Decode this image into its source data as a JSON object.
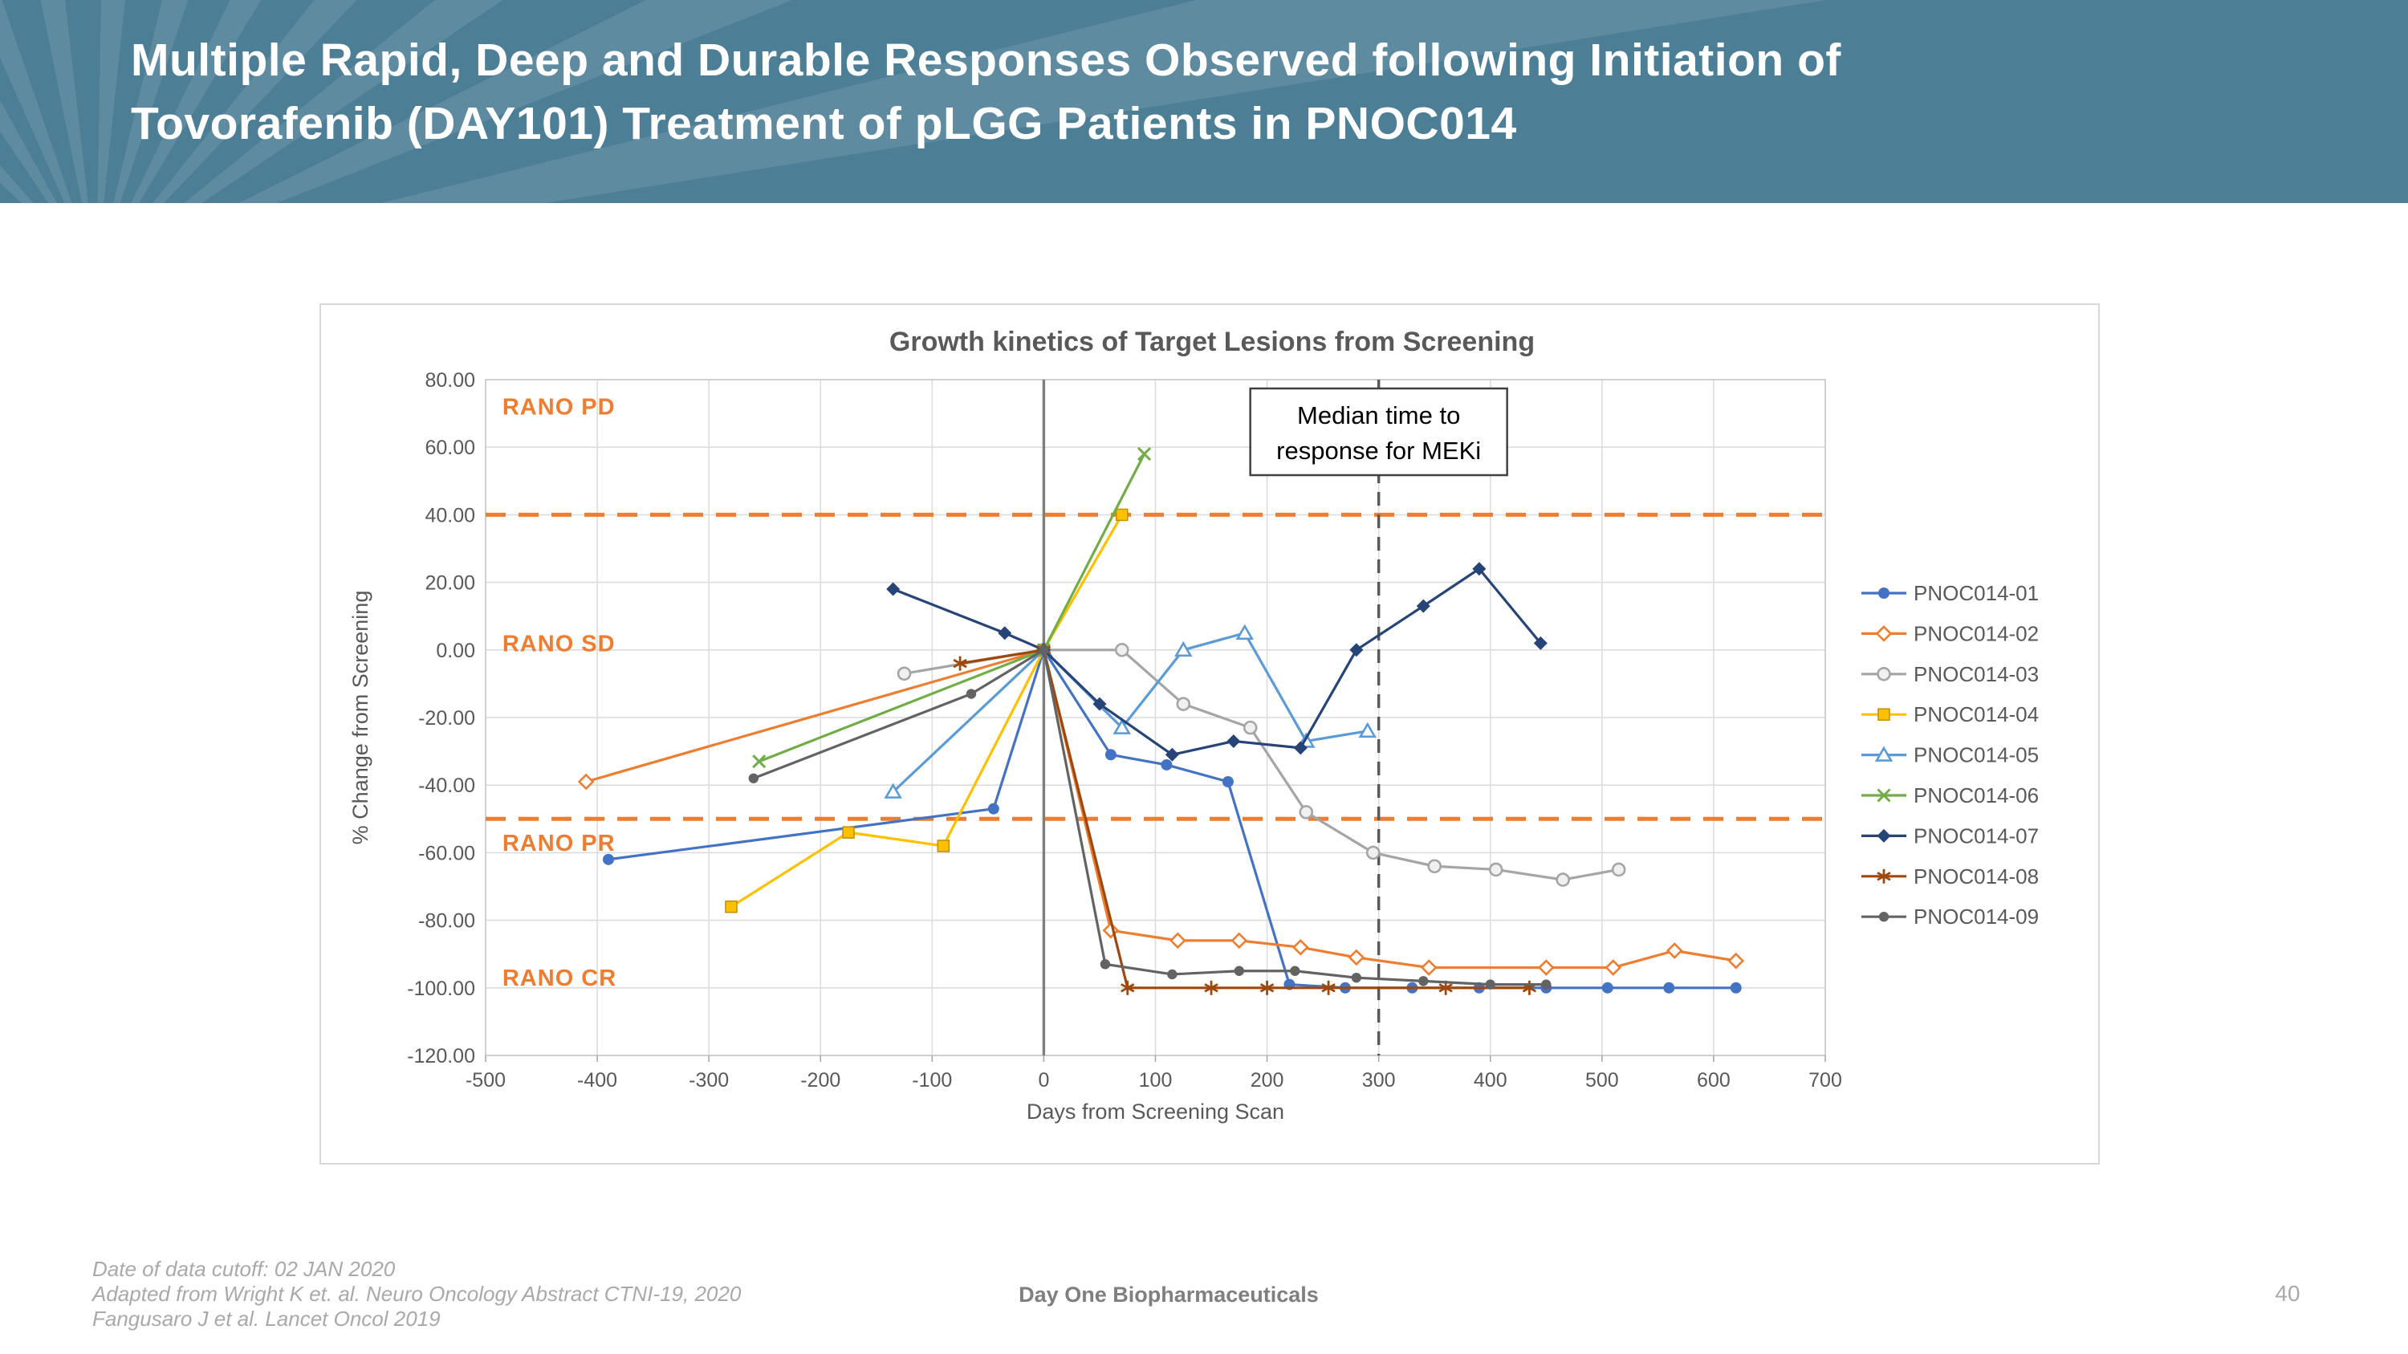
{
  "slide": {
    "title_line1": "Multiple Rapid, Deep and Durable Responses Observed following Initiation of",
    "title_line2": "Tovorafenib (DAY101) Treatment of pLGG Patients in PNOC014",
    "header_bg": "#4C7E95",
    "footer": {
      "line1": "Date of data cutoff:  02 JAN 2020",
      "line2": "Adapted from Wright K et. al.  Neuro Oncology Abstract CTNI-19, 2020",
      "line3": "Fangusaro J et al.  Lancet Oncol 2019",
      "company": "Day One Biopharmaceuticals",
      "page_number": "40"
    }
  },
  "chart_data": {
    "type": "line",
    "title": "Growth kinetics of Target Lesions from Screening",
    "xlabel": "Days from Screening Scan",
    "ylabel": "% Change from Screening",
    "xlim": [
      -500,
      700
    ],
    "ylim": [
      -120,
      80
    ],
    "grid": true,
    "legend_position": "right",
    "x_tick_values": [
      -500,
      -400,
      -300,
      -200,
      -100,
      0,
      100,
      200,
      300,
      400,
      500,
      600,
      700
    ],
    "x_tick_labels": [
      "-500",
      "-400",
      "-300",
      "-200",
      "-100",
      "0",
      "100",
      "200",
      "300",
      "400",
      "500",
      "600",
      "700"
    ],
    "y_tick_values": [
      80,
      60,
      40,
      20,
      0,
      -20,
      -40,
      -60,
      -80,
      -100,
      -120
    ],
    "y_tick_labels": [
      "80.00",
      "60.00",
      "40.00",
      "20.00",
      "0.00",
      "-20.00",
      "-40.00",
      "-60.00",
      "-80.00",
      "-100.00",
      "-120.00"
    ],
    "zero_axis_x": 0,
    "threshold_color": "#ED7D31",
    "threshold_lines_y": [
      40,
      -50
    ],
    "rano_labels": [
      {
        "label": "RANO PD",
        "x": -485,
        "y": 72
      },
      {
        "label": "RANO SD",
        "x": -485,
        "y": 2
      },
      {
        "label": "RANO PR",
        "x": -485,
        "y": -57
      },
      {
        "label": "RANO CR",
        "x": -485,
        "y": -97
      }
    ],
    "median_meki": {
      "line_x": 300,
      "box_line1": "Median time to",
      "box_line2": "response for MEKi"
    },
    "series": [
      {
        "name": "PNOC014-01",
        "color": "#4472C4",
        "marker": "circle",
        "points": [
          [
            -390,
            -62
          ],
          [
            -45,
            -47
          ],
          [
            0,
            0
          ],
          [
            60,
            -31
          ],
          [
            110,
            -34
          ],
          [
            165,
            -39
          ],
          [
            220,
            -99
          ],
          [
            270,
            -100
          ],
          [
            330,
            -100
          ],
          [
            390,
            -100
          ],
          [
            450,
            -100
          ],
          [
            505,
            -100
          ],
          [
            560,
            -100
          ],
          [
            620,
            -100
          ]
        ]
      },
      {
        "name": "PNOC014-02",
        "color": "#ED7D31",
        "marker": "diamond-open",
        "points": [
          [
            -410,
            -39
          ],
          [
            0,
            0
          ],
          [
            60,
            -83
          ],
          [
            120,
            -86
          ],
          [
            175,
            -86
          ],
          [
            230,
            -88
          ],
          [
            280,
            -91
          ],
          [
            345,
            -94
          ],
          [
            450,
            -94
          ],
          [
            510,
            -94
          ],
          [
            565,
            -89
          ],
          [
            620,
            -92
          ]
        ]
      },
      {
        "name": "PNOC014-03",
        "color": "#A5A5A5",
        "marker": "circle-open",
        "points": [
          [
            -125,
            -7
          ],
          [
            0,
            0
          ],
          [
            70,
            0
          ],
          [
            125,
            -16
          ],
          [
            185,
            -23
          ],
          [
            235,
            -48
          ],
          [
            295,
            -60
          ],
          [
            350,
            -64
          ],
          [
            405,
            -65
          ],
          [
            465,
            -68
          ],
          [
            515,
            -65
          ]
        ]
      },
      {
        "name": "PNOC014-04",
        "color": "#FFC000",
        "marker": "square",
        "points": [
          [
            -280,
            -76
          ],
          [
            -175,
            -54
          ],
          [
            -90,
            -58
          ],
          [
            0,
            0
          ],
          [
            70,
            40
          ]
        ]
      },
      {
        "name": "PNOC014-05",
        "color": "#5B9BD5",
        "marker": "triangle-open",
        "points": [
          [
            -135,
            -42
          ],
          [
            0,
            0
          ],
          [
            70,
            -23
          ],
          [
            125,
            0
          ],
          [
            180,
            5
          ],
          [
            235,
            -27
          ],
          [
            290,
            -24
          ]
        ]
      },
      {
        "name": "PNOC014-06",
        "color": "#70AD47",
        "marker": "x",
        "points": [
          [
            -255,
            -33
          ],
          [
            0,
            0
          ],
          [
            90,
            58
          ]
        ]
      },
      {
        "name": "PNOC014-07",
        "color": "#264478",
        "marker": "diamond",
        "points": [
          [
            -135,
            18
          ],
          [
            -35,
            5
          ],
          [
            0,
            0
          ],
          [
            50,
            -16
          ],
          [
            115,
            -31
          ],
          [
            170,
            -27
          ],
          [
            230,
            -29
          ],
          [
            280,
            0
          ],
          [
            340,
            13
          ],
          [
            390,
            24
          ],
          [
            445,
            2
          ]
        ]
      },
      {
        "name": "PNOC014-08",
        "color": "#9E480E",
        "marker": "asterisk",
        "points": [
          [
            -75,
            -4
          ],
          [
            0,
            0
          ],
          [
            75,
            -100
          ],
          [
            150,
            -100
          ],
          [
            200,
            -100
          ],
          [
            255,
            -100
          ],
          [
            360,
            -100
          ],
          [
            435,
            -100
          ]
        ]
      },
      {
        "name": "PNOC014-09",
        "color": "#636363",
        "marker": "dot",
        "points": [
          [
            -260,
            -38
          ],
          [
            -65,
            -13
          ],
          [
            0,
            0
          ],
          [
            55,
            -93
          ],
          [
            115,
            -96
          ],
          [
            175,
            -95
          ],
          [
            225,
            -95
          ],
          [
            280,
            -97
          ],
          [
            340,
            -98
          ],
          [
            400,
            -99
          ],
          [
            450,
            -99
          ]
        ]
      }
    ]
  }
}
